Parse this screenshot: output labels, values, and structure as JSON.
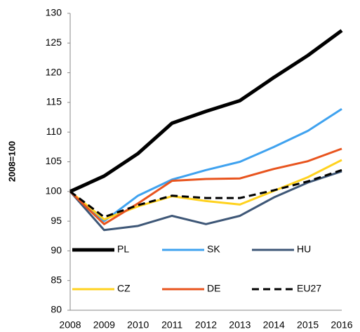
{
  "chart_data": {
    "type": "line",
    "y_label": "2008=100",
    "categories": [
      "2008",
      "2009",
      "2010",
      "2011",
      "2012",
      "2013",
      "2014",
      "2015",
      "2016"
    ],
    "ylim": [
      80,
      130
    ],
    "yticks": [
      80,
      85,
      90,
      95,
      100,
      105,
      110,
      115,
      120,
      125,
      130
    ],
    "grid": false,
    "series": [
      {
        "name": "PL",
        "color": "#000000",
        "width": 5,
        "style": "solid",
        "values": [
          100,
          102.6,
          106.4,
          111.5,
          113.5,
          115.3,
          119.2,
          122.9,
          127.1
        ]
      },
      {
        "name": "SK",
        "color": "#3fa2ef",
        "width": 3,
        "style": "solid",
        "values": [
          100,
          95,
          99.3,
          102,
          103.6,
          105,
          107.5,
          110.2,
          113.9
        ]
      },
      {
        "name": "HU",
        "color": "#3e5777",
        "width": 3,
        "style": "solid",
        "values": [
          100,
          93.5,
          94.2,
          95.9,
          94.5,
          95.9,
          99,
          101.5,
          103.4
        ]
      },
      {
        "name": "CZ",
        "color": "#ffd21f",
        "width": 3,
        "style": "solid",
        "values": [
          100,
          95.3,
          97.5,
          99.2,
          98.4,
          97.8,
          100.1,
          102.4,
          105.3
        ]
      },
      {
        "name": "DE",
        "color": "#e8541e",
        "width": 3,
        "style": "solid",
        "values": [
          100,
          94.5,
          98,
          101.8,
          102.1,
          102.2,
          103.8,
          105.1,
          107.2
        ]
      },
      {
        "name": "EU27",
        "color": "#000000",
        "width": 3,
        "style": "dashed",
        "values": [
          100,
          95.7,
          97.7,
          99.3,
          98.9,
          98.9,
          100.2,
          101.7,
          103.6
        ]
      }
    ]
  }
}
